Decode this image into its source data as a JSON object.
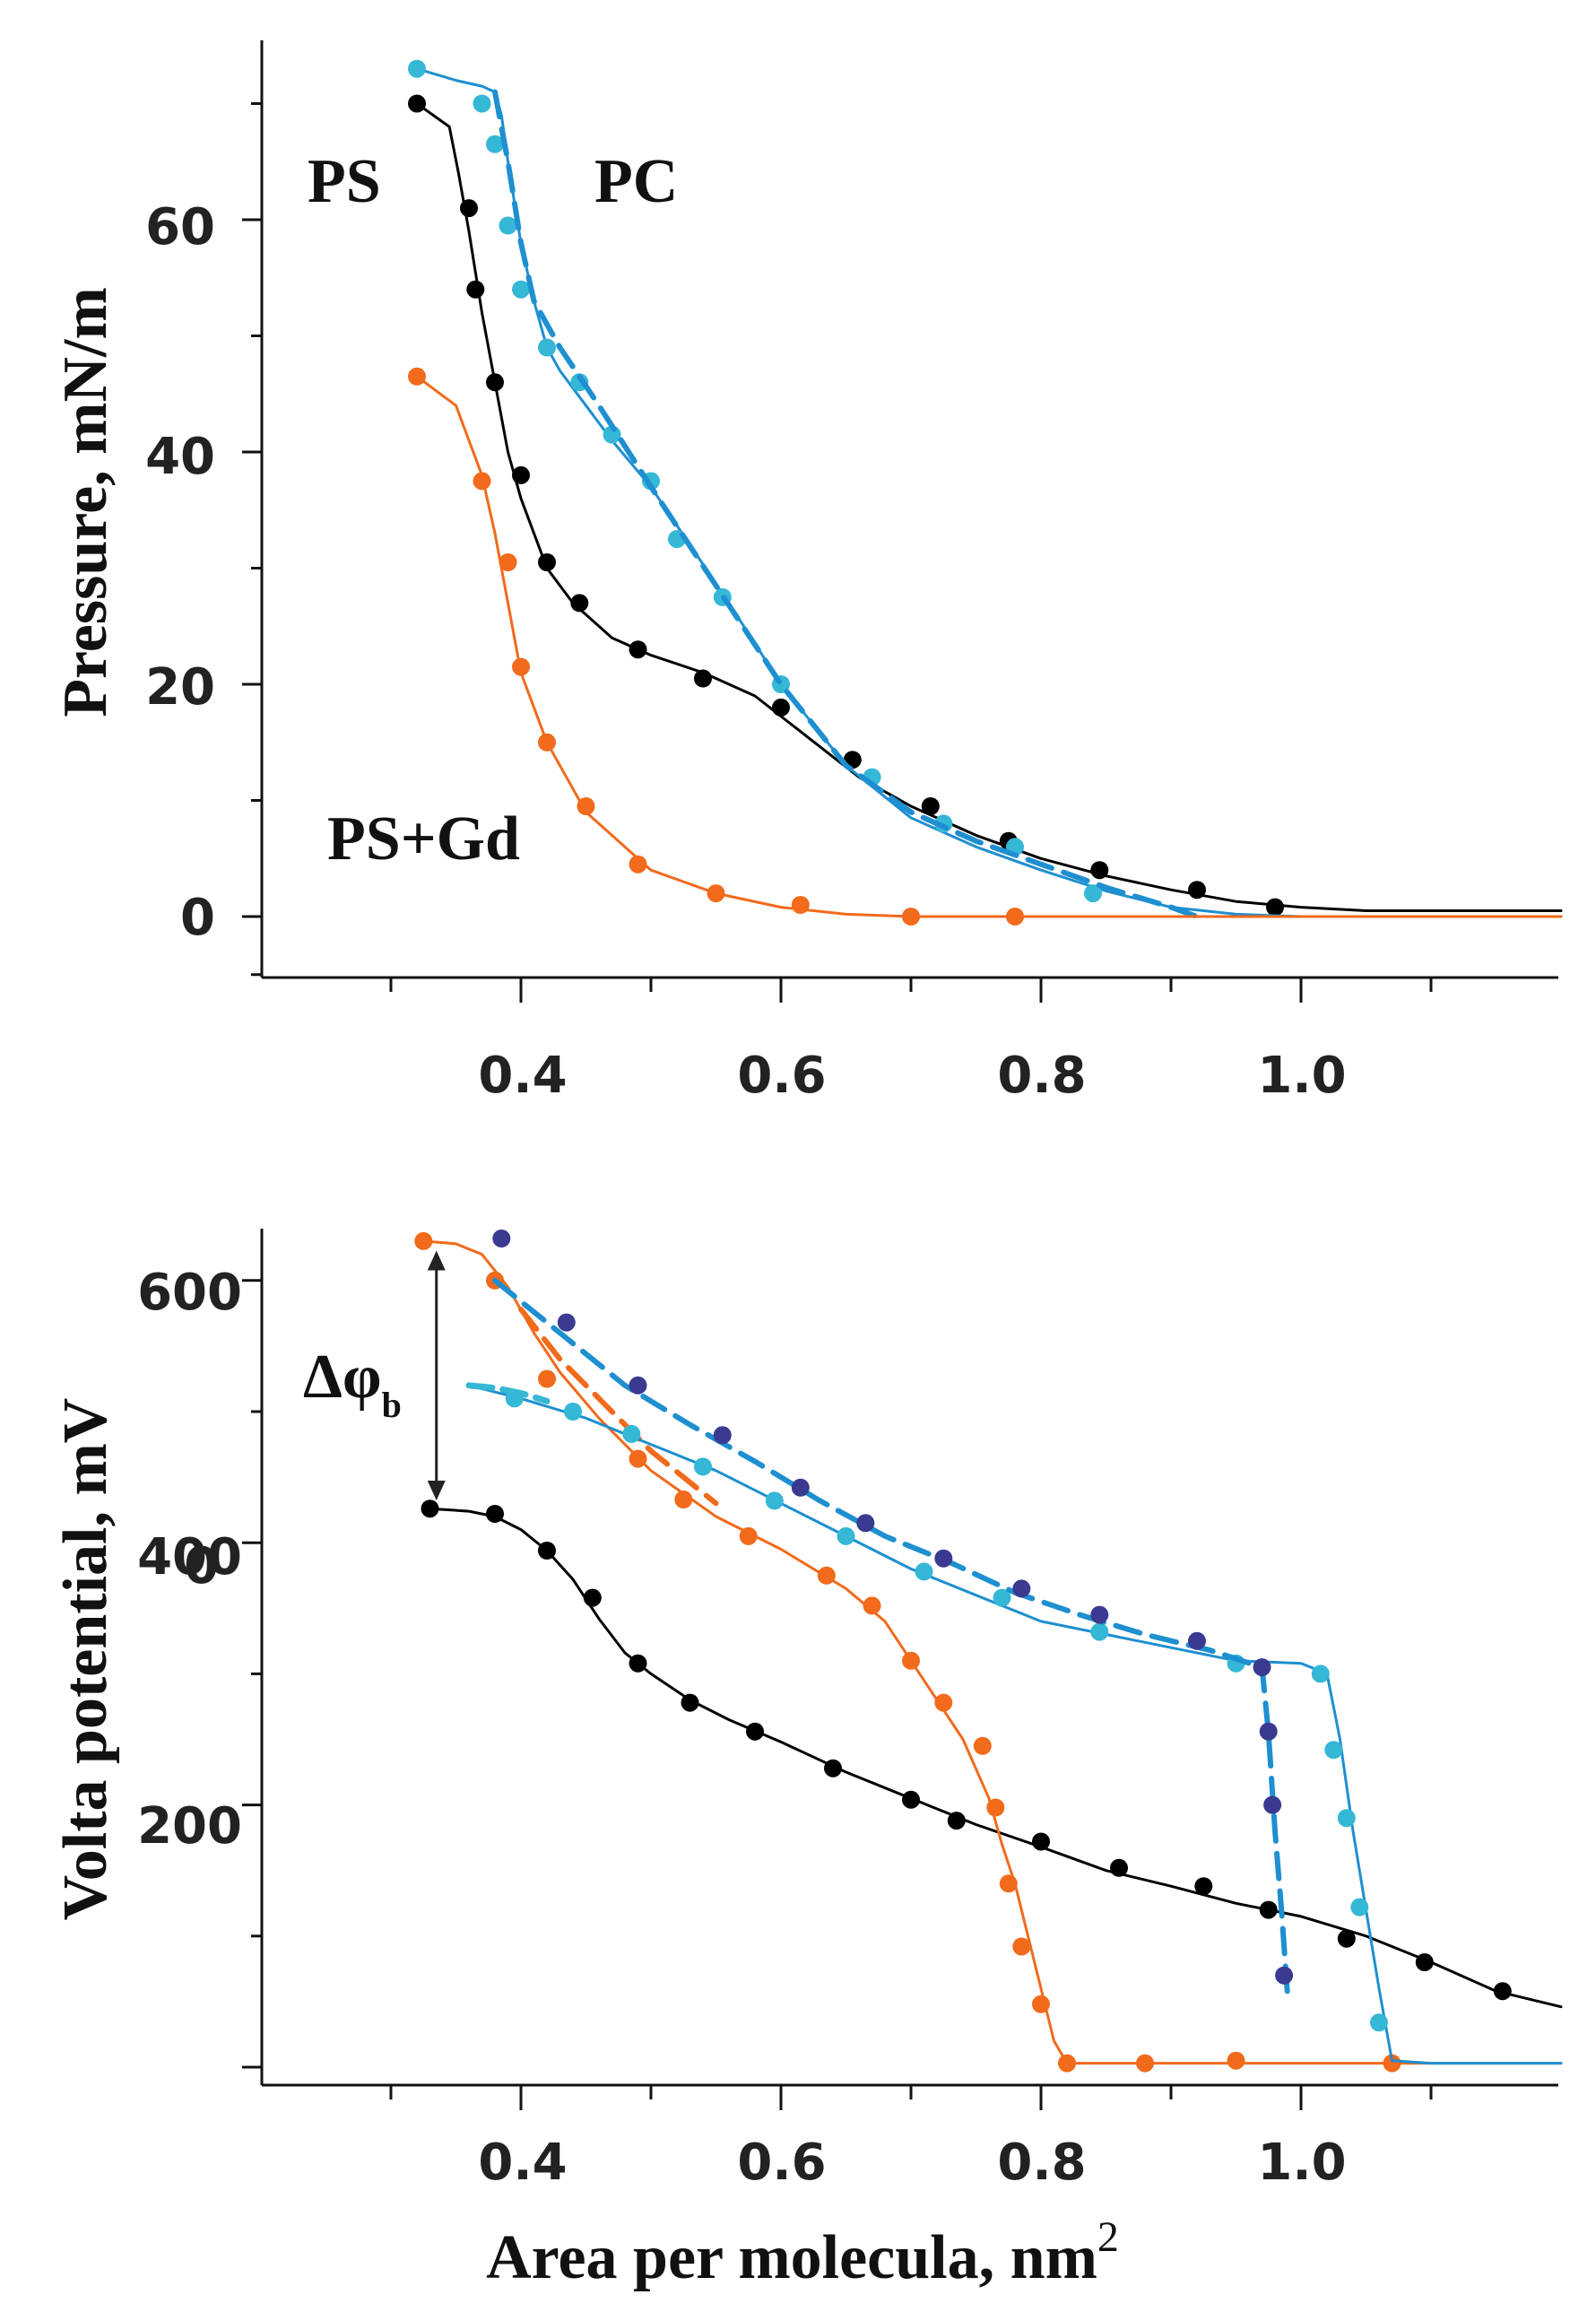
{
  "chart_data": [
    {
      "type": "line",
      "title": "",
      "xlabel": "",
      "ylabel": "Pressure, mN/m",
      "xlim": [
        0.2,
        1.2
      ],
      "ylim": [
        -5,
        76
      ],
      "x_ticks": [
        0.4,
        0.6,
        0.8,
        1.0
      ],
      "x_tick_labels": [
        "0.4",
        "0.6",
        "0.8",
        "1.0"
      ],
      "y_ticks": [
        0,
        20,
        40,
        60
      ],
      "y_tick_labels": [
        "0",
        "20",
        "40",
        "60"
      ],
      "annotations": [
        "PS",
        "PC",
        "PS+Gd"
      ],
      "series": [
        {
          "name": "PS",
          "color": "#000000",
          "style": "solid",
          "line_x": [
            0.32,
            0.345,
            0.352,
            0.36,
            0.37,
            0.38,
            0.39,
            0.4,
            0.42,
            0.44,
            0.47,
            0.5,
            0.54,
            0.58,
            0.62,
            0.66,
            0.7,
            0.75,
            0.8,
            0.85,
            0.9,
            0.95,
            1.0,
            1.05,
            1.1,
            1.15,
            1.2
          ],
          "line_y": [
            70,
            68,
            64,
            59,
            52,
            46,
            40,
            36,
            30,
            27,
            24,
            22.5,
            21,
            19,
            15.5,
            12,
            9.5,
            7,
            5,
            3.5,
            2.3,
            1.3,
            0.8,
            0.5,
            0.5,
            0.5,
            0.5
          ],
          "markers_x": [
            0.32,
            0.36,
            0.365,
            0.38,
            0.4,
            0.42,
            0.445,
            0.49,
            0.54,
            0.6,
            0.655,
            0.715,
            0.775,
            0.845,
            0.92,
            0.98
          ],
          "markers_y": [
            70,
            61,
            54,
            46,
            38,
            30.5,
            27,
            23,
            20.5,
            18,
            13.5,
            9.5,
            6.5,
            4,
            2.3,
            0.8
          ]
        },
        {
          "name": "PC",
          "color": "#35b7d6",
          "line_color": "#1e8fd0",
          "style": "solid",
          "line_x": [
            0.32,
            0.35,
            0.37,
            0.38,
            0.385,
            0.39,
            0.4,
            0.41,
            0.42,
            0.43,
            0.45,
            0.47,
            0.5,
            0.53,
            0.56,
            0.6,
            0.65,
            0.7,
            0.75,
            0.8,
            0.85,
            0.9,
            0.95,
            1.0,
            1.1,
            1.2
          ],
          "line_y": [
            73,
            72,
            71.5,
            71,
            69,
            65,
            58,
            53,
            49,
            47,
            44,
            41,
            37,
            32,
            27,
            20,
            13,
            8.5,
            6,
            4,
            2.2,
            0.8,
            0.2,
            0,
            0,
            0
          ],
          "markers_x": [
            0.32,
            0.37,
            0.38,
            0.39,
            0.4,
            0.42,
            0.445,
            0.47,
            0.5,
            0.52,
            0.555,
            0.6,
            0.67,
            0.725,
            0.78,
            0.84
          ],
          "markers_y": [
            73,
            70,
            66.5,
            59.5,
            54,
            49,
            46,
            41.5,
            37.5,
            32.5,
            27.5,
            20,
            12,
            8,
            6,
            2
          ]
        },
        {
          "name": "PC (dashed)",
          "color": "#1e8fd0",
          "style": "dashed",
          "line_x": [
            0.38,
            0.39,
            0.4,
            0.41,
            0.43,
            0.46,
            0.5,
            0.55,
            0.6,
            0.65,
            0.7,
            0.75,
            0.8,
            0.85,
            0.9,
            0.92
          ],
          "line_y": [
            71,
            65,
            58,
            53,
            49,
            44,
            37,
            28.5,
            20,
            13,
            9,
            6.5,
            4.5,
            2.5,
            0.8,
            0
          ]
        },
        {
          "name": "PS+Gd",
          "color": "#f26a1b",
          "style": "solid",
          "line_x": [
            0.32,
            0.35,
            0.36,
            0.37,
            0.38,
            0.39,
            0.4,
            0.42,
            0.45,
            0.5,
            0.55,
            0.6,
            0.65,
            0.7,
            0.8,
            0.9,
            1.0,
            1.1,
            1.2
          ],
          "line_y": [
            46.5,
            44,
            41,
            38,
            33,
            27,
            21,
            15,
            9,
            4,
            2,
            0.8,
            0.2,
            0,
            0,
            0,
            0,
            0,
            0
          ],
          "markers_x": [
            0.32,
            0.37,
            0.39,
            0.4,
            0.42,
            0.45,
            0.49,
            0.55,
            0.615,
            0.7,
            0.78
          ],
          "markers_y": [
            46.5,
            37.5,
            30.5,
            21.5,
            15,
            9.5,
            4.5,
            2,
            1,
            0,
            0
          ]
        }
      ]
    },
    {
      "type": "line",
      "title": "",
      "xlabel": "Area per molecula, nm",
      "xlabel_sup": "2",
      "ylabel": "Volta potential, mV",
      "xlim": [
        0.2,
        1.2
      ],
      "ylim": [
        -25,
        650
      ],
      "x_ticks": [
        0.4,
        0.6,
        0.8,
        1.0
      ],
      "x_tick_labels": [
        "0.4",
        "0.6",
        "0.8",
        "1.0"
      ],
      "y_ticks": [
        0,
        200,
        400,
        600
      ],
      "y_tick_labels": [
        "0",
        "200",
        "400",
        "600"
      ],
      "annotations": [
        "Δφb"
      ],
      "annotation_parts": {
        "main": "Δφ",
        "sub": "b"
      },
      "delta_arrow_x": 0.335,
      "delta_arrow_y": [
        620,
        435
      ],
      "series": [
        {
          "name": "PS",
          "color": "#000000",
          "style": "solid",
          "line_x": [
            0.33,
            0.36,
            0.38,
            0.4,
            0.42,
            0.44,
            0.46,
            0.48,
            0.5,
            0.53,
            0.56,
            0.6,
            0.65,
            0.7,
            0.75,
            0.8,
            0.85,
            0.9,
            0.95,
            1.0,
            1.05,
            1.1,
            1.15,
            1.2
          ],
          "line_y": [
            426,
            424,
            420,
            410,
            394,
            372,
            342,
            316,
            300,
            280,
            265,
            248,
            225,
            205,
            185,
            168,
            150,
            138,
            125,
            115,
            100,
            80,
            58,
            46
          ],
          "markers_x": [
            0.33,
            0.38,
            0.42,
            0.455,
            0.49,
            0.53,
            0.58,
            0.64,
            0.7,
            0.735,
            0.8,
            0.86,
            0.925,
            0.975,
            1.035,
            1.095,
            1.155
          ],
          "markers_y": [
            426,
            422,
            394,
            358,
            308,
            278,
            256,
            228,
            204,
            188,
            172,
            152,
            138,
            120,
            98,
            80,
            58
          ]
        },
        {
          "name": "PS+Gd",
          "color": "#f26a1b",
          "style": "solid",
          "line_x": [
            0.325,
            0.35,
            0.37,
            0.39,
            0.41,
            0.43,
            0.46,
            0.5,
            0.55,
            0.6,
            0.65,
            0.68,
            0.7,
            0.72,
            0.74,
            0.76,
            0.77,
            0.78,
            0.79,
            0.8,
            0.81,
            0.82,
            0.9,
            1.0,
            1.1,
            1.2
          ],
          "line_y": [
            630,
            628,
            620,
            595,
            560,
            530,
            495,
            455,
            420,
            395,
            365,
            340,
            310,
            280,
            250,
            205,
            170,
            140,
            100,
            60,
            20,
            3,
            3,
            3,
            3,
            3
          ],
          "markers_x": [
            0.325,
            0.38,
            0.42,
            0.49,
            0.525,
            0.575,
            0.635,
            0.67,
            0.7,
            0.725,
            0.755,
            0.765,
            0.775,
            0.785,
            0.8,
            0.82,
            0.88,
            0.95,
            1.07
          ],
          "markers_y": [
            630,
            600,
            525,
            464,
            433,
            405,
            375,
            352,
            310,
            278,
            245,
            198,
            140,
            92,
            48,
            3,
            3,
            5,
            3
          ]
        },
        {
          "name": "PS+Gd (dashed)",
          "color": "#f26a1b",
          "style": "dashed",
          "line_x": [
            0.4,
            0.43,
            0.47,
            0.5,
            0.55
          ],
          "line_y": [
            578,
            540,
            500,
            470,
            430
          ]
        },
        {
          "name": "PC",
          "color": "#35b7d6",
          "line_color": "#1e8fd0",
          "style": "solid",
          "line_x": [
            0.36,
            0.4,
            0.45,
            0.5,
            0.55,
            0.6,
            0.65,
            0.7,
            0.75,
            0.8,
            0.85,
            0.9,
            0.95,
            1.0,
            1.02,
            1.03,
            1.04,
            1.05,
            1.06,
            1.07,
            1.1,
            1.2
          ],
          "line_y": [
            520,
            510,
            495,
            475,
            455,
            430,
            405,
            380,
            360,
            340,
            330,
            320,
            310,
            308,
            300,
            250,
            180,
            120,
            60,
            5,
            3,
            3
          ],
          "markers_x": [
            0.395,
            0.44,
            0.485,
            0.54,
            0.595,
            0.65,
            0.71,
            0.77,
            0.845,
            0.95,
            1.015,
            1.025,
            1.035,
            1.045,
            1.06
          ],
          "markers_y": [
            510,
            500,
            483,
            458,
            432,
            405,
            378,
            358,
            332,
            308,
            300,
            242,
            190,
            122,
            34
          ]
        },
        {
          "name": "PC (dashed)",
          "color": "#1e8fd0",
          "style": "dashed",
          "line_x": [
            0.38,
            0.43,
            0.48,
            0.53,
            0.58,
            0.63,
            0.68,
            0.73,
            0.78,
            0.83,
            0.88,
            0.93,
            0.97,
            0.975,
            0.98,
            0.985,
            0.99
          ],
          "line_y": [
            600,
            560,
            520,
            490,
            462,
            432,
            405,
            385,
            362,
            345,
            330,
            318,
            305,
            255,
            180,
            120,
            50
          ]
        },
        {
          "name": "PC (dashed, markers)",
          "color": "#3a3a90",
          "style": "none",
          "markers_x": [
            0.385,
            0.435,
            0.49,
            0.555,
            0.615,
            0.665,
            0.725,
            0.785,
            0.845,
            0.92,
            0.97,
            0.975,
            0.978,
            0.987
          ],
          "markers_y": [
            632,
            568,
            520,
            482,
            442,
            415,
            388,
            365,
            345,
            325,
            305,
            256,
            200,
            70
          ]
        },
        {
          "name": "PC (dashed, light)",
          "color": "#35b7d6",
          "style": "dashed-light",
          "line_x": [
            0.36,
            0.38,
            0.4,
            0.42
          ],
          "line_y": [
            520,
            518,
            514,
            508
          ]
        }
      ]
    }
  ]
}
